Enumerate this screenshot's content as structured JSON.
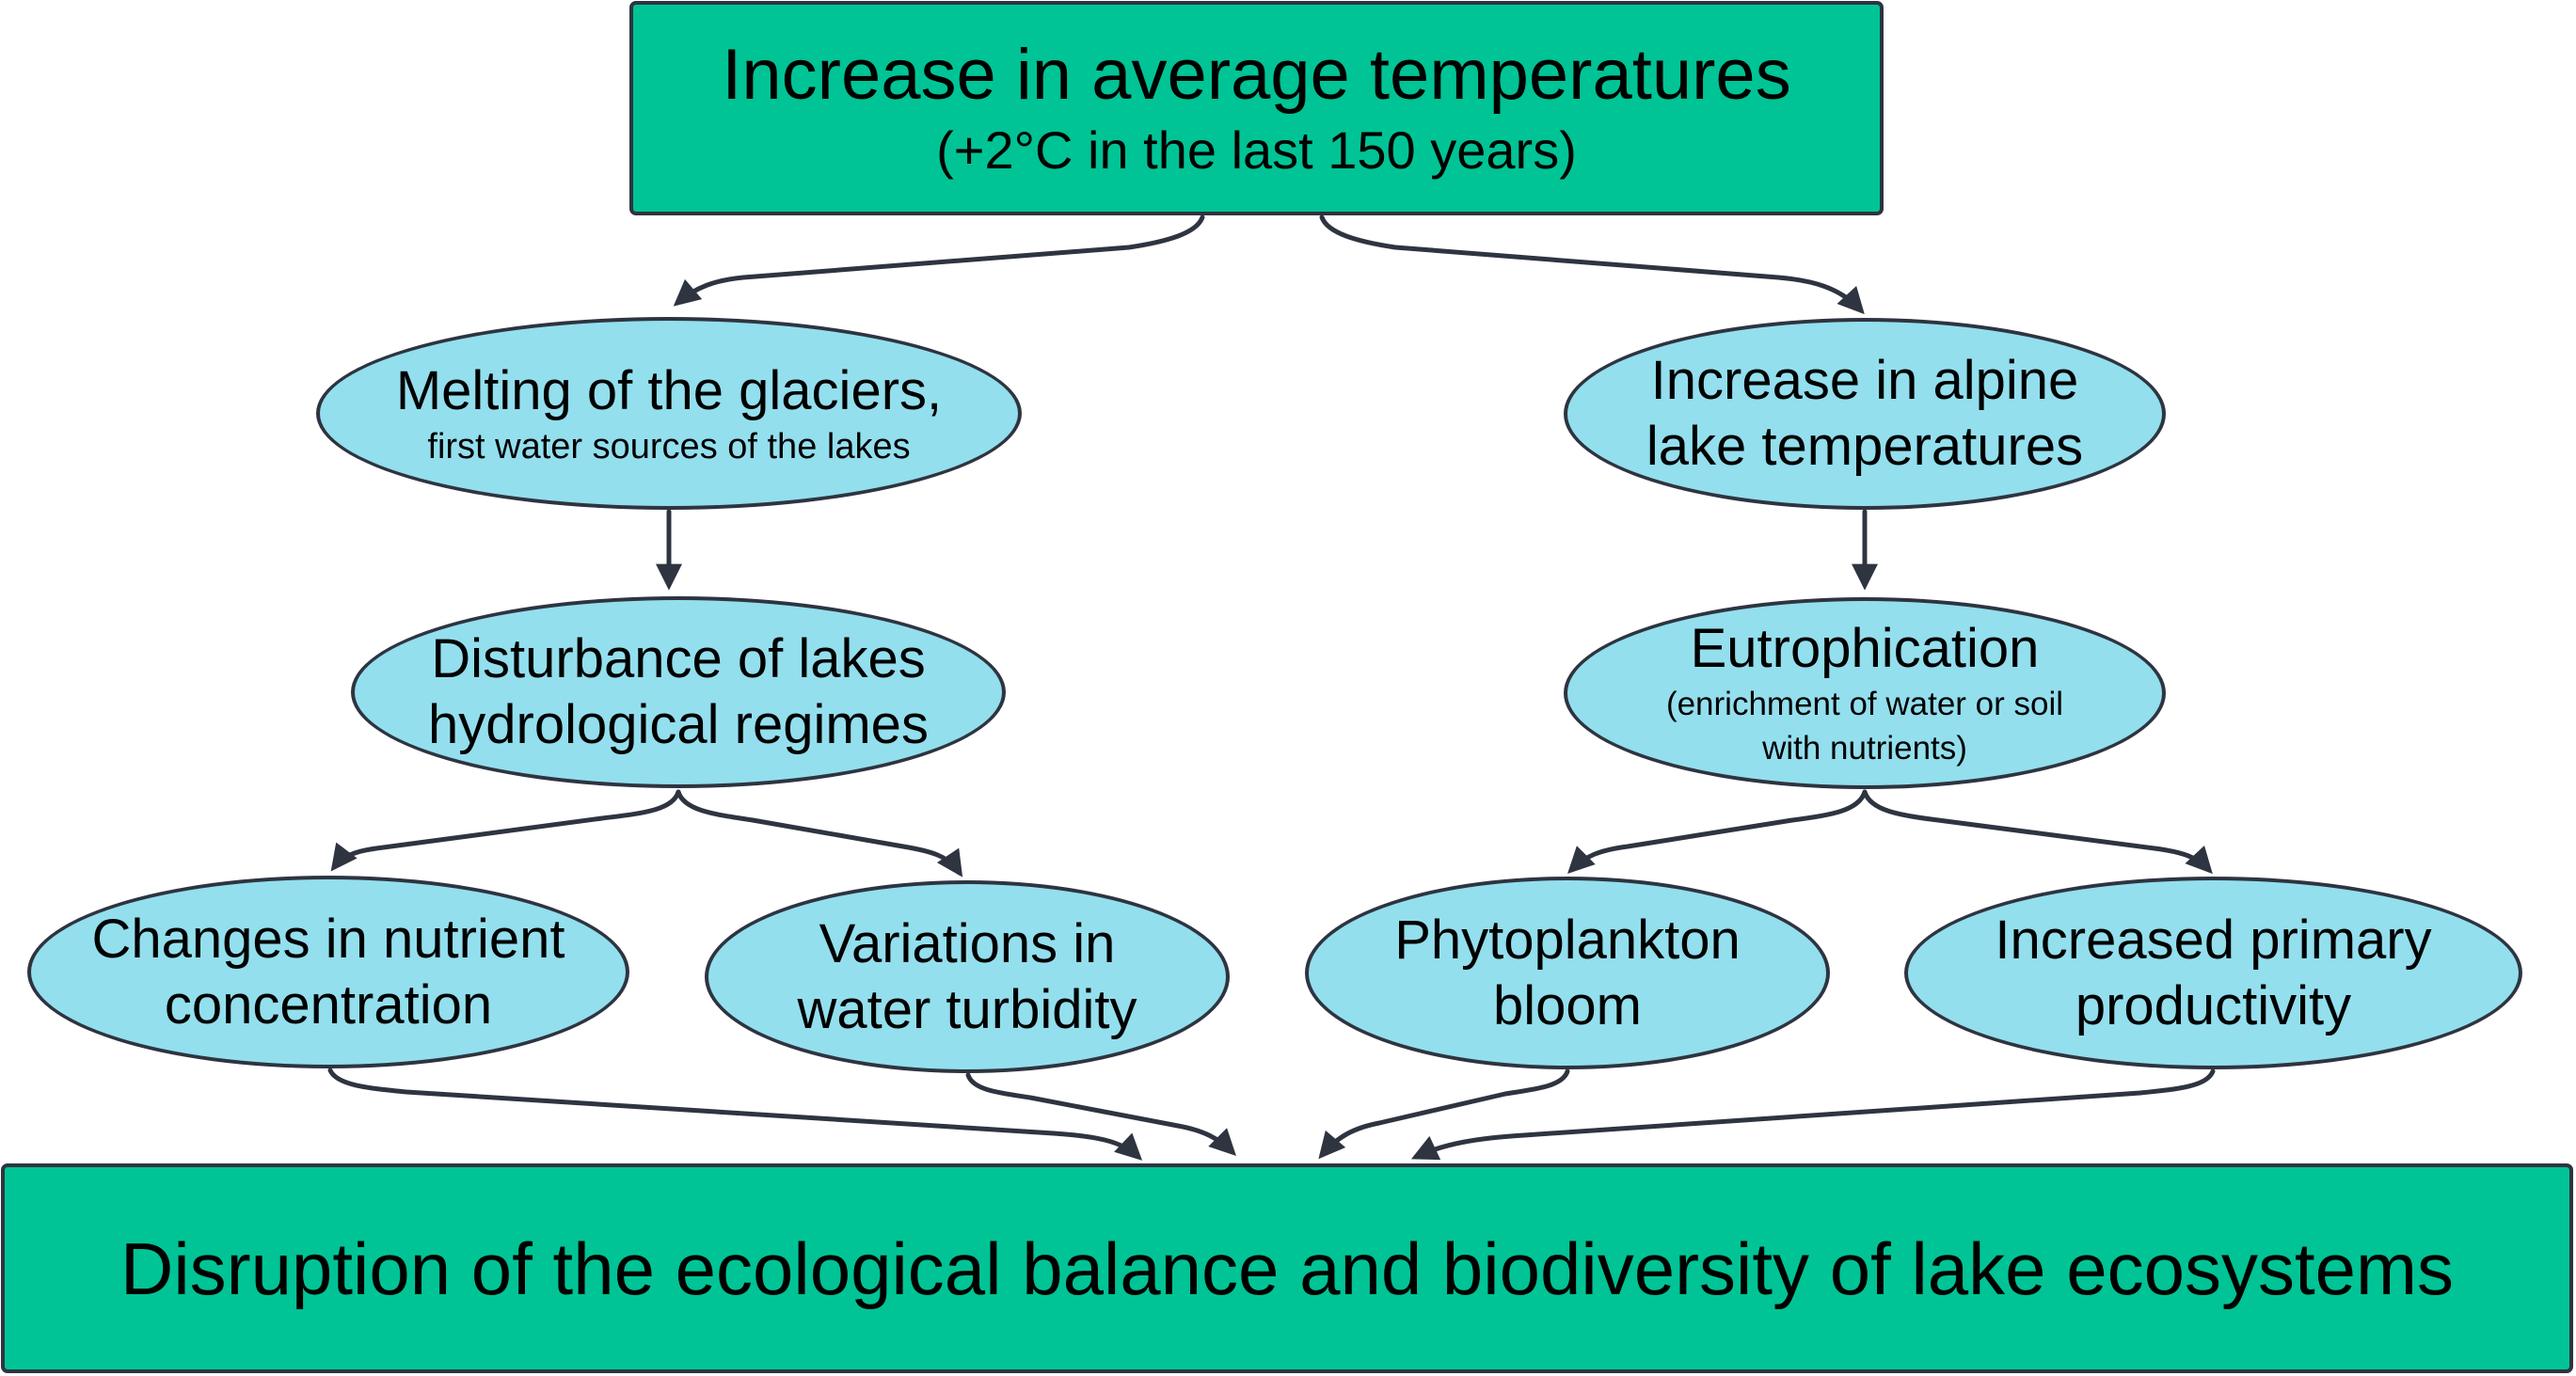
{
  "colors": {
    "root_fill": "#00c495",
    "node_fill": "#93dfee",
    "stroke": "#2e3440"
  },
  "nodes": {
    "root": {
      "title": "Increase in average temperatures",
      "subtitle": "(+2°C in the last 150 years)"
    },
    "glaciers": {
      "title": "Melting of the glaciers,",
      "subtitle": "first water sources of the lakes"
    },
    "lake_temp": {
      "line1": "Increase in alpine",
      "line2": "lake temperatures"
    },
    "hydro": {
      "line1": "Disturbance of lakes",
      "line2": "hydrological regimes"
    },
    "eutroph": {
      "title": "Eutrophication",
      "line2": "(enrichment of water or soil",
      "line3": "with nutrients)"
    },
    "nutrient": {
      "line1": "Changes in nutrient",
      "line2": "concentration"
    },
    "turbidity": {
      "line1": "Variations in",
      "line2": "water turbidity"
    },
    "phyto": {
      "line1": "Phytoplankton",
      "line2": "bloom"
    },
    "productivity": {
      "line1": "Increased primary",
      "line2": "productivity"
    },
    "outcome": {
      "title": "Disruption of the ecological balance and biodiversity of lake ecosystems"
    }
  },
  "edges": [
    {
      "from": "root",
      "to": "glaciers"
    },
    {
      "from": "root",
      "to": "lake_temp"
    },
    {
      "from": "glaciers",
      "to": "hydro"
    },
    {
      "from": "lake_temp",
      "to": "eutroph"
    },
    {
      "from": "hydro",
      "to": "nutrient"
    },
    {
      "from": "hydro",
      "to": "turbidity"
    },
    {
      "from": "eutroph",
      "to": "phyto"
    },
    {
      "from": "eutroph",
      "to": "productivity"
    },
    {
      "from": "nutrient",
      "to": "outcome"
    },
    {
      "from": "turbidity",
      "to": "outcome"
    },
    {
      "from": "phyto",
      "to": "outcome"
    },
    {
      "from": "productivity",
      "to": "outcome"
    }
  ]
}
